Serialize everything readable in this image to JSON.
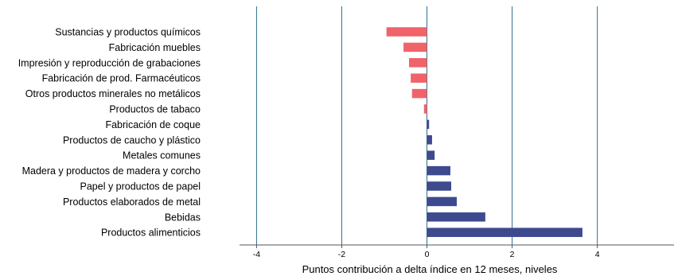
{
  "chart_data": {
    "type": "bar",
    "orientation": "horizontal",
    "categories": [
      "Sustancias y productos químicos",
      "Fabricación muebles",
      "Impresión y reproducción de grabaciones",
      "Fabricación de prod. Farmacéuticos",
      "Otros productos minerales no metálicos",
      "Productos de tabaco",
      "Fabricación de coque",
      "Productos de caucho y plástico",
      "Metales comunes",
      "Madera y productos de madera y corcho",
      "Papel y productos de papel",
      "Productos elaborados de metal",
      "Bebidas",
      "Productos alimenticios"
    ],
    "values": [
      -0.95,
      -0.55,
      -0.42,
      -0.38,
      -0.35,
      -0.07,
      0.05,
      0.12,
      0.18,
      0.55,
      0.57,
      0.7,
      1.37,
      3.65
    ],
    "xlabel": "Puntos contribución a delta índice en 12 meses, niveles",
    "xlim": [
      -4.4,
      5.8
    ],
    "xticks": [
      "-4",
      "-2",
      "0",
      "2",
      "4"
    ],
    "tick_values": [
      -4,
      -2,
      0,
      2,
      4
    ],
    "grid": "vertical lines at ticks",
    "colors": {
      "negative": "#f0636b",
      "positive": "#3e4a8e",
      "grid": "#2e6f8f",
      "axis": "#555555"
    }
  }
}
